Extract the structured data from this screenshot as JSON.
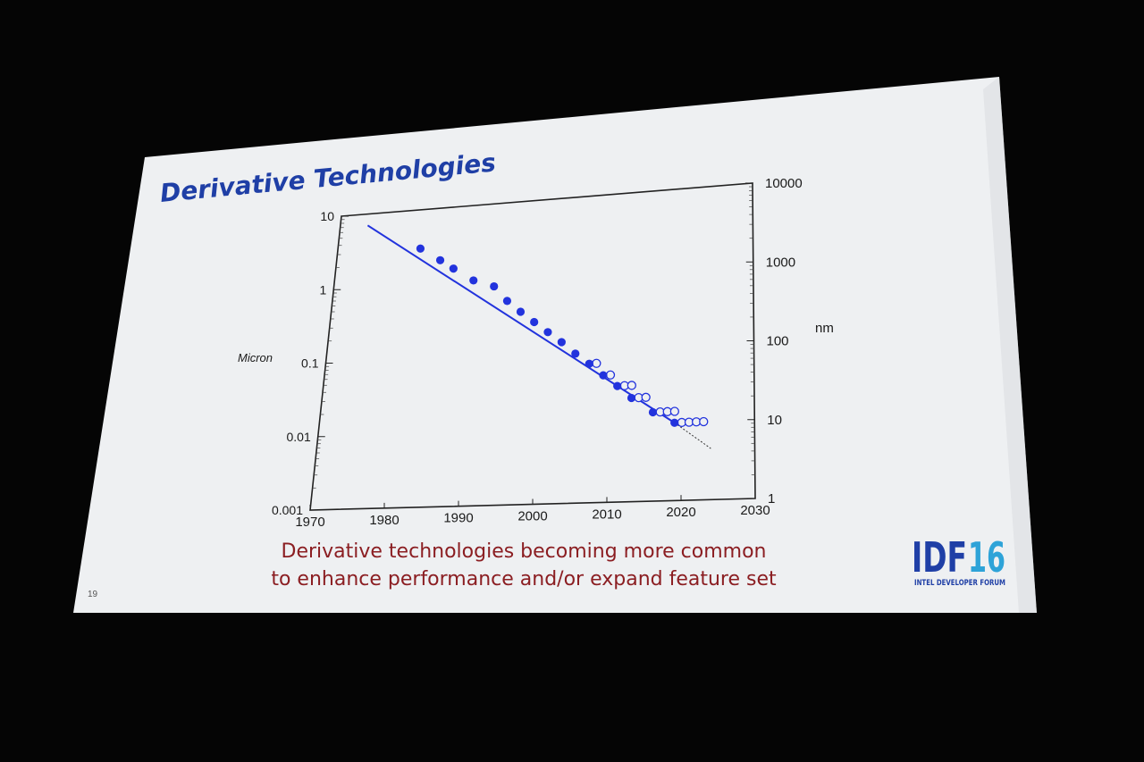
{
  "slide": {
    "title": "Derivative Technologies",
    "caption_line1": "Derivative technologies becoming more common",
    "caption_line2": "to enhance performance and/or expand feature set",
    "slide_number": "19",
    "logo": {
      "text_idf": "IDF",
      "text_year": "16",
      "subtitle": "INTEL DEVELOPER FORUM",
      "color_idf": "#1f3fa6",
      "color_year": "#2ea3d8"
    },
    "background": "#eef0f2",
    "title_color": "#1f3fa6",
    "caption_color": "#8b1e22"
  },
  "chart_data": {
    "type": "scatter",
    "title": "",
    "xlabel": "",
    "ylabel": "Micron",
    "y2label": "nm",
    "xlim": [
      1970,
      2030
    ],
    "ylim": [
      0.001,
      10
    ],
    "y2lim": [
      1,
      10000
    ],
    "yscale": "log",
    "x_ticks": [
      "1970",
      "1980",
      "1990",
      "2000",
      "2010",
      "2020",
      "2030"
    ],
    "y_ticks": [
      "10",
      "1",
      "0.1",
      "0.01",
      "0.001"
    ],
    "y2_ticks": [
      "10000",
      "1000",
      "100",
      "10",
      "1"
    ],
    "grid": false,
    "series": [
      {
        "marker": "filled-circle",
        "color": "#2233dd",
        "points": [
          [
            1982,
            3.0
          ],
          [
            1985,
            2.0
          ],
          [
            1987,
            1.5
          ],
          [
            1990,
            1.0
          ],
          [
            1993,
            0.8
          ],
          [
            1995,
            0.5
          ],
          [
            1997,
            0.35
          ],
          [
            1999,
            0.25
          ],
          [
            2001,
            0.18
          ],
          [
            2003,
            0.13
          ],
          [
            2005,
            0.09
          ],
          [
            2007,
            0.065
          ],
          [
            2009,
            0.045
          ],
          [
            2011,
            0.032
          ],
          [
            2013,
            0.022
          ],
          [
            2016,
            0.014
          ],
          [
            2019,
            0.01
          ]
        ]
      },
      {
        "marker": "open-circle",
        "color": "#2233dd",
        "points": [
          [
            2008,
            0.065
          ],
          [
            2010,
            0.045
          ],
          [
            2012,
            0.032
          ],
          [
            2013,
            0.032
          ],
          [
            2014,
            0.022
          ],
          [
            2015,
            0.022
          ],
          [
            2017,
            0.014
          ],
          [
            2018,
            0.014
          ],
          [
            2019,
            0.014
          ],
          [
            2020,
            0.01
          ],
          [
            2021,
            0.01
          ],
          [
            2022,
            0.01
          ],
          [
            2023,
            0.01
          ]
        ]
      }
    ],
    "trend_line": {
      "color": "#2233dd",
      "points": [
        [
          1974,
          7.0
        ],
        [
          2019,
          0.01
        ]
      ]
    },
    "projection": {
      "style": "dotted",
      "color": "#333333",
      "points": [
        [
          2019,
          0.01
        ],
        [
          2024,
          0.0045
        ]
      ]
    }
  }
}
